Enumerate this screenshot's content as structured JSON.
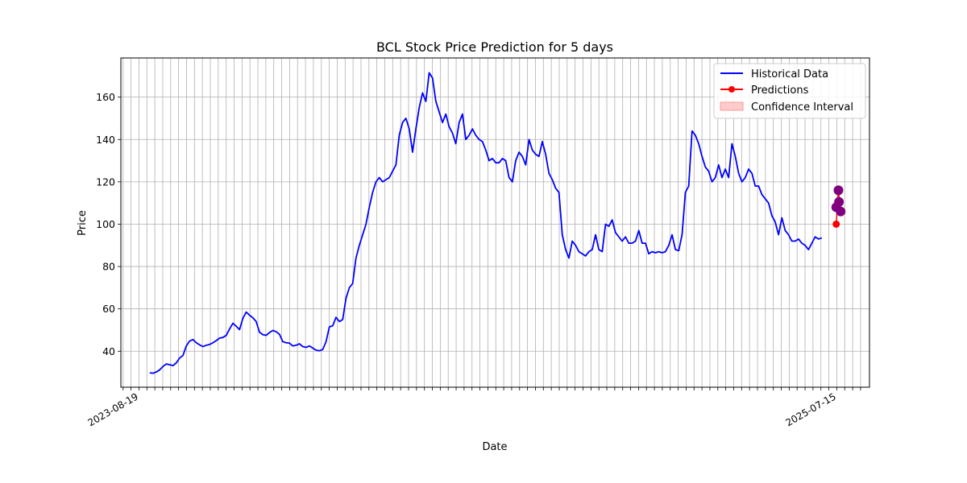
{
  "chart_data": {
    "type": "line",
    "title": "BCL Stock Price Prediction for 5 days",
    "xlabel": "Date",
    "ylabel": "Price",
    "ylim": [
      23,
      178.5
    ],
    "y_ticks": [
      40,
      60,
      80,
      100,
      120,
      140,
      160
    ],
    "grid": true,
    "legend_position": "top-right",
    "x_tick_labels": [
      "2023-08-19",
      "2025-07-15"
    ],
    "series": [
      {
        "name": "Historical Data",
        "color": "#0000ff",
        "values": [
          [
            0,
            29.8
          ],
          [
            3,
            29.6
          ],
          [
            6,
            30.2
          ],
          [
            9,
            31.2
          ],
          [
            12,
            32.8
          ],
          [
            15,
            34.0
          ],
          [
            18,
            33.6
          ],
          [
            21,
            33.2
          ],
          [
            24,
            34.5
          ],
          [
            27,
            36.8
          ],
          [
            30,
            38.0
          ],
          [
            33,
            42.5
          ],
          [
            36,
            44.8
          ],
          [
            39,
            45.5
          ],
          [
            42,
            44.0
          ],
          [
            45,
            43.0
          ],
          [
            48,
            42.2
          ],
          [
            51,
            42.8
          ],
          [
            54,
            43.2
          ],
          [
            57,
            44.0
          ],
          [
            60,
            45.0
          ],
          [
            63,
            46.2
          ],
          [
            66,
            46.5
          ],
          [
            69,
            47.5
          ],
          [
            72,
            50.5
          ],
          [
            75,
            53.2
          ],
          [
            78,
            51.8
          ],
          [
            81,
            50.2
          ],
          [
            84,
            55.5
          ],
          [
            87,
            58.5
          ],
          [
            90,
            57.0
          ],
          [
            93,
            55.8
          ],
          [
            96,
            54.0
          ],
          [
            99,
            49.0
          ],
          [
            102,
            47.8
          ],
          [
            105,
            47.5
          ],
          [
            108,
            48.8
          ],
          [
            111,
            49.8
          ],
          [
            114,
            49.2
          ],
          [
            117,
            48.0
          ],
          [
            120,
            44.5
          ],
          [
            123,
            44.0
          ],
          [
            126,
            43.8
          ],
          [
            129,
            42.5
          ],
          [
            132,
            42.8
          ],
          [
            135,
            43.5
          ],
          [
            138,
            42.2
          ],
          [
            141,
            41.8
          ],
          [
            144,
            42.5
          ],
          [
            147,
            41.5
          ],
          [
            150,
            40.5
          ],
          [
            153,
            40.2
          ],
          [
            156,
            40.8
          ],
          [
            159,
            44.5
          ],
          [
            162,
            51.5
          ],
          [
            165,
            52.0
          ],
          [
            168,
            56.0
          ],
          [
            171,
            54.0
          ],
          [
            174,
            55.0
          ],
          [
            177,
            65.0
          ],
          [
            180,
            70.0
          ],
          [
            183,
            72.0
          ],
          [
            186,
            84.0
          ],
          [
            189,
            90.0
          ],
          [
            192,
            95.0
          ],
          [
            195,
            100.0
          ],
          [
            198,
            108.0
          ],
          [
            201,
            115.0
          ],
          [
            204,
            120.0
          ],
          [
            207,
            122.0
          ],
          [
            210,
            120.0
          ],
          [
            213,
            121.0
          ],
          [
            216,
            122.0
          ],
          [
            219,
            125.0
          ],
          [
            222,
            128.0
          ],
          [
            225,
            142.0
          ],
          [
            228,
            148.0
          ],
          [
            231,
            150.0
          ],
          [
            234,
            145.0
          ],
          [
            237,
            134.0
          ],
          [
            240,
            145.0
          ],
          [
            243,
            155.0
          ],
          [
            246,
            162.0
          ],
          [
            249,
            158.0
          ],
          [
            252,
            171.5
          ],
          [
            255,
            169.0
          ],
          [
            258,
            158.0
          ],
          [
            261,
            153.0
          ],
          [
            264,
            148.0
          ],
          [
            267,
            152.0
          ],
          [
            270,
            146.0
          ],
          [
            273,
            143.0
          ],
          [
            276,
            138.0
          ],
          [
            279,
            148.0
          ],
          [
            282,
            152.0
          ],
          [
            285,
            140.0
          ],
          [
            288,
            142.0
          ],
          [
            291,
            145.0
          ],
          [
            294,
            142.0
          ],
          [
            297,
            140.0
          ],
          [
            300,
            139.0
          ],
          [
            303,
            135.0
          ],
          [
            306,
            130.0
          ],
          [
            309,
            131.0
          ],
          [
            312,
            129.0
          ],
          [
            315,
            129.0
          ],
          [
            318,
            131.0
          ],
          [
            321,
            130.0
          ],
          [
            324,
            122.0
          ],
          [
            327,
            120.0
          ],
          [
            330,
            130.0
          ],
          [
            333,
            134.0
          ],
          [
            336,
            132.0
          ],
          [
            339,
            128.0
          ],
          [
            342,
            140.0
          ],
          [
            345,
            135.0
          ],
          [
            348,
            133.0
          ],
          [
            351,
            132.0
          ],
          [
            354,
            139.0
          ],
          [
            357,
            133.0
          ],
          [
            360,
            124.0
          ],
          [
            363,
            121.0
          ],
          [
            366,
            117.0
          ],
          [
            369,
            115.0
          ],
          [
            372,
            95.0
          ],
          [
            375,
            88.0
          ],
          [
            378,
            84.0
          ],
          [
            381,
            92.0
          ],
          [
            384,
            90.0
          ],
          [
            387,
            87.0
          ],
          [
            390,
            86.0
          ],
          [
            393,
            85.0
          ],
          [
            396,
            87.0
          ],
          [
            399,
            88.0
          ],
          [
            402,
            95.0
          ],
          [
            405,
            88.0
          ],
          [
            408,
            87.0
          ],
          [
            411,
            100.0
          ],
          [
            414,
            99.0
          ],
          [
            417,
            102.0
          ],
          [
            420,
            96.0
          ],
          [
            423,
            94.0
          ],
          [
            426,
            92.0
          ],
          [
            429,
            94.0
          ],
          [
            432,
            91.0
          ],
          [
            435,
            91.0
          ],
          [
            438,
            92.0
          ],
          [
            441,
            97.0
          ],
          [
            444,
            91.0
          ],
          [
            447,
            91.0
          ],
          [
            450,
            86.0
          ],
          [
            453,
            87.0
          ],
          [
            456,
            86.5
          ],
          [
            459,
            87.0
          ],
          [
            462,
            86.5
          ],
          [
            465,
            87.0
          ],
          [
            468,
            90.0
          ],
          [
            471,
            95.0
          ],
          [
            474,
            88.0
          ],
          [
            477,
            87.5
          ],
          [
            480,
            95.0
          ],
          [
            483,
            115.0
          ],
          [
            486,
            118.0
          ],
          [
            489,
            144.0
          ],
          [
            492,
            142.0
          ],
          [
            495,
            138.0
          ],
          [
            498,
            132.0
          ],
          [
            501,
            127.0
          ],
          [
            504,
            125.0
          ],
          [
            507,
            120.0
          ],
          [
            510,
            122.0
          ],
          [
            513,
            128.0
          ],
          [
            516,
            122.0
          ],
          [
            519,
            126.0
          ],
          [
            522,
            122.0
          ],
          [
            525,
            138.0
          ],
          [
            528,
            132.0
          ],
          [
            531,
            124.0
          ],
          [
            534,
            120.0
          ],
          [
            537,
            122.0
          ],
          [
            540,
            126.0
          ],
          [
            543,
            124.0
          ],
          [
            546,
            118.0
          ],
          [
            549,
            118.0
          ],
          [
            552,
            114.0
          ],
          [
            555,
            112.0
          ],
          [
            558,
            110.0
          ],
          [
            561,
            104.0
          ],
          [
            564,
            101.0
          ],
          [
            567,
            95.0
          ],
          [
            570,
            103.0
          ],
          [
            573,
            97.0
          ],
          [
            576,
            95.0
          ],
          [
            579,
            92.0
          ],
          [
            582,
            92.0
          ],
          [
            585,
            93.0
          ],
          [
            588,
            91.0
          ],
          [
            591,
            90.0
          ],
          [
            594,
            88.0
          ],
          [
            597,
            91.0
          ],
          [
            600,
            94.0
          ],
          [
            603,
            93.0
          ],
          [
            606,
            93.5
          ]
        ]
      },
      {
        "name": "Predictions",
        "color": "#ff0000",
        "values": [
          [
            619,
            100.0
          ],
          [
            620,
            108.0
          ],
          [
            621,
            116.0
          ],
          [
            622,
            111.0
          ],
          [
            623,
            106.0
          ]
        ]
      },
      {
        "name": "Confidence Interval",
        "color": "#ff9999"
      }
    ],
    "highlight_points": {
      "color": "#800080",
      "values": [
        [
          619,
          108.0
        ],
        [
          621,
          116.0
        ],
        [
          621.5,
          110.5
        ],
        [
          623,
          106.0
        ]
      ]
    }
  }
}
